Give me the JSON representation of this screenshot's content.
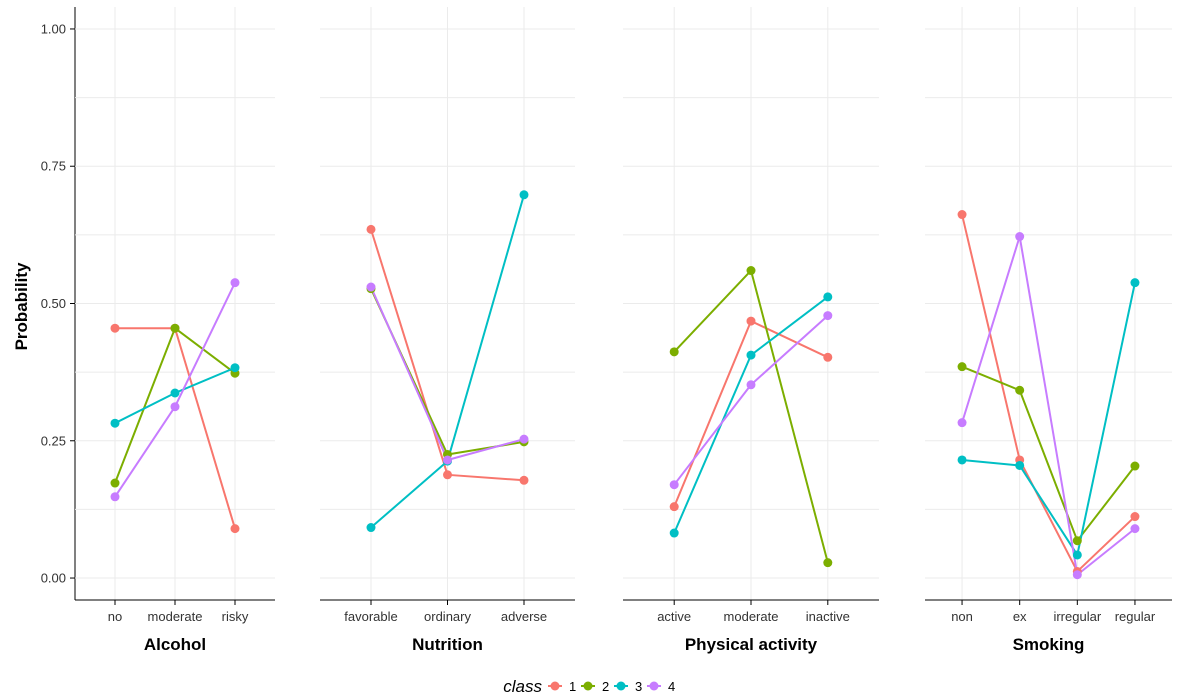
{
  "chart_data": {
    "type": "line",
    "ylabel": "Probability",
    "ylim": [
      -0.04,
      1.04
    ],
    "yticks": [
      "0.00",
      "0.25",
      "0.50",
      "0.75",
      "1.00"
    ],
    "grid": true,
    "legend": {
      "title": "class",
      "placement": "bottom",
      "entries": [
        {
          "label": "1",
          "color": "#F8766D"
        },
        {
          "label": "2",
          "color": "#7CAE00"
        },
        {
          "label": "3",
          "color": "#00BFC4"
        },
        {
          "label": "4",
          "color": "#C77CFF"
        }
      ]
    },
    "facets": [
      {
        "label": "Alcohol",
        "categories": [
          "no",
          "moderate",
          "risky"
        ],
        "series": [
          {
            "class": "1",
            "values": [
              0.455,
              0.455,
              0.09
            ]
          },
          {
            "class": "2",
            "values": [
              0.173,
              0.455,
              0.373
            ]
          },
          {
            "class": "3",
            "values": [
              0.282,
              0.337,
              0.383
            ]
          },
          {
            "class": "4",
            "values": [
              0.148,
              0.312,
              0.538
            ]
          }
        ]
      },
      {
        "label": "Nutrition",
        "categories": [
          "favorable",
          "ordinary",
          "adverse"
        ],
        "series": [
          {
            "class": "1",
            "values": [
              0.635,
              0.188,
              0.178
            ]
          },
          {
            "class": "2",
            "values": [
              0.527,
              0.225,
              0.248
            ]
          },
          {
            "class": "3",
            "values": [
              0.092,
              0.213,
              0.698
            ]
          },
          {
            "class": "4",
            "values": [
              0.53,
              0.215,
              0.253
            ]
          }
        ]
      },
      {
        "label": "Physical activity",
        "categories": [
          "active",
          "moderate",
          "inactive"
        ],
        "series": [
          {
            "class": "1",
            "values": [
              0.13,
              0.468,
              0.402
            ]
          },
          {
            "class": "2",
            "values": [
              0.412,
              0.56,
              0.028
            ]
          },
          {
            "class": "3",
            "values": [
              0.082,
              0.406,
              0.512
            ]
          },
          {
            "class": "4",
            "values": [
              0.17,
              0.352,
              0.478
            ]
          }
        ]
      },
      {
        "label": "Smoking",
        "categories": [
          "non",
          "ex",
          "irregular",
          "regular"
        ],
        "series": [
          {
            "class": "1",
            "values": [
              0.662,
              0.215,
              0.012,
              0.112
            ]
          },
          {
            "class": "2",
            "values": [
              0.385,
              0.342,
              0.068,
              0.204
            ]
          },
          {
            "class": "3",
            "values": [
              0.215,
              0.205,
              0.042,
              0.538
            ]
          },
          {
            "class": "4",
            "values": [
              0.283,
              0.622,
              0.006,
              0.09
            ]
          }
        ]
      }
    ]
  }
}
